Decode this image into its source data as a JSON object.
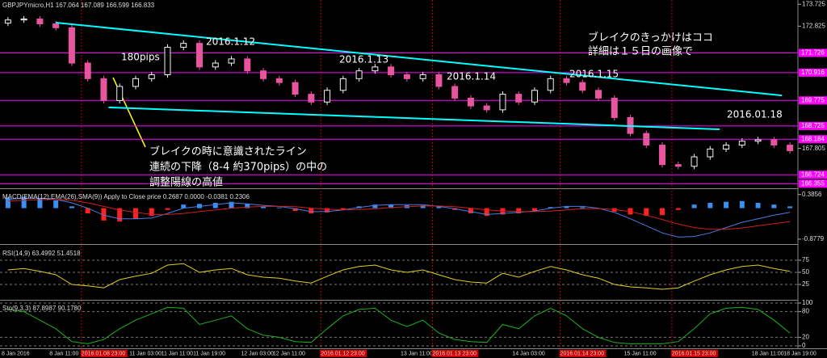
{
  "chart_data": [
    {
      "type": "candlestick",
      "title": "GBPJPYmicro,H1  167.064 167.089 166.599 166.833",
      "categories": [
        "8 Jan 2016",
        null,
        null,
        "8 Jan 11:00",
        null,
        "2016.01.08 23:00",
        null,
        null,
        "11 Jan 03:00",
        null,
        "11 Jan 11:00",
        null,
        "11 Jan 19:00",
        null,
        null,
        "12 Jan 03:00",
        null,
        "12 Jan 11:00",
        null,
        null,
        "2016.01.12 23:00",
        null,
        null,
        null,
        null,
        "13 Jan 11:00",
        null,
        "2016.01.13 23:00",
        null,
        null,
        null,
        null,
        "14 Jan 03:00",
        null,
        null,
        "2016.01.14 23:00",
        null,
        null,
        null,
        "15 Jan 11:00",
        null,
        null,
        "2016.01.15 23:00",
        null,
        null,
        null,
        null,
        "18 Jan 11:00",
        null,
        "18 Jan 19:00"
      ],
      "open": [
        172.95,
        173.08,
        173.12,
        172.92,
        172.76,
        171.31,
        170.67,
        169.77,
        170.35,
        170.67,
        170.83,
        171.96,
        172.12,
        171.15,
        171.31,
        171.48,
        170.99,
        170.67,
        170.51,
        170.03,
        169.71,
        170.19,
        170.67,
        170.99,
        171.15,
        170.83,
        170.67,
        170.83,
        170.35,
        169.87,
        169.55,
        169.39,
        170.03,
        169.71,
        170.19,
        170.67,
        170.51,
        170.19,
        169.87,
        169.07,
        168.42,
        167.94,
        167.14,
        167.07,
        167.46,
        167.78,
        167.94,
        168.1,
        168.16,
        167.94
      ],
      "high": [
        173.2,
        173.24,
        173.24,
        173.04,
        172.88,
        171.43,
        170.79,
        170.47,
        170.79,
        170.95,
        172.08,
        172.24,
        172.24,
        171.43,
        171.6,
        171.6,
        171.11,
        170.79,
        170.63,
        170.15,
        170.31,
        170.79,
        171.11,
        171.27,
        171.27,
        170.95,
        170.95,
        170.95,
        170.47,
        169.99,
        169.67,
        170.15,
        170.15,
        170.31,
        170.79,
        170.79,
        170.63,
        170.31,
        169.99,
        169.19,
        168.54,
        168.06,
        167.26,
        167.58,
        167.9,
        168.06,
        168.22,
        168.28,
        168.28,
        168.06
      ],
      "low": [
        172.83,
        172.96,
        172.8,
        172.64,
        171.19,
        170.55,
        169.65,
        169.65,
        170.23,
        170.55,
        170.71,
        171.84,
        171.03,
        171.03,
        171.19,
        170.87,
        170.55,
        170.39,
        169.91,
        169.59,
        169.59,
        170.07,
        170.55,
        170.87,
        170.71,
        170.55,
        170.55,
        170.23,
        169.75,
        169.43,
        169.27,
        169.27,
        169.59,
        169.59,
        170.07,
        170.39,
        170.07,
        169.75,
        168.95,
        168.3,
        167.82,
        167.02,
        166.95,
        166.95,
        167.34,
        167.66,
        167.82,
        167.98,
        167.82,
        167.59
      ],
      "close": [
        173.08,
        173.12,
        172.92,
        172.76,
        171.31,
        170.67,
        169.77,
        170.35,
        170.67,
        170.83,
        171.96,
        172.12,
        171.15,
        171.31,
        171.48,
        170.99,
        170.67,
        170.51,
        170.03,
        169.71,
        170.19,
        170.67,
        170.99,
        171.15,
        170.83,
        170.67,
        170.83,
        170.35,
        169.87,
        169.55,
        169.39,
        170.03,
        169.71,
        170.19,
        170.67,
        170.51,
        170.19,
        169.87,
        169.07,
        168.42,
        167.94,
        167.14,
        167.07,
        167.46,
        167.78,
        167.94,
        168.1,
        168.16,
        167.94,
        167.71
      ],
      "bull_color": "#f4f4f4",
      "bear_color": "#e8559f",
      "ylim": [
        166.2,
        173.9
      ],
      "yticks": [
        173.725,
        172.825,
        167.805
      ],
      "levels": [
        171.726,
        170.916,
        169.775,
        168.725,
        168.184,
        166.724,
        166.355
      ],
      "level_color": "#ff00ff",
      "trendlines": [
        {
          "from": [
            3,
            172.97
          ],
          "to": [
            48.5,
            169.98
          ],
          "color": "#00ffff"
        },
        {
          "from": [
            6.3,
            169.49
          ],
          "to": [
            44.6,
            168.59
          ],
          "color": "#00ffff"
        }
      ],
      "annotations": [
        "2016.1.12",
        "180pips",
        "2016.1.13",
        "2016.1.14",
        "2016.1.15",
        "2016.01.18",
        "ブレイクのきっかけはココ",
        "詳細は１５日の画像で",
        "ブレイクの時に意識されたライン",
        "連続の下降（8-4 約370pips）の中の",
        "調整陽線の高値"
      ]
    },
    {
      "type": "macd",
      "title": "MACD(EMA(12),EMA(26),SMA(9)) Apply to Close price 0.2687 0.0000 -0.0381 0.2306",
      "values": [
        0.3,
        0.32,
        0.28,
        0.22,
        0.05,
        -0.15,
        -0.35,
        -0.38,
        -0.3,
        -0.22,
        -0.05,
        0.1,
        0.12,
        0.15,
        0.18,
        0.12,
        0.05,
        0.02,
        -0.08,
        -0.15,
        -0.12,
        -0.05,
        0.05,
        0.1,
        0.1,
        0.08,
        0.08,
        0.05,
        -0.05,
        -0.15,
        -0.22,
        -0.18,
        -0.15,
        -0.1,
        0.03,
        0.05,
        0.03,
        -0.02,
        -0.1,
        -0.18,
        -0.22,
        -0.2,
        -0.05,
        0.1,
        0.15,
        0.18,
        0.2,
        0.15,
        0.1,
        0.05
      ],
      "up_color": "#3b8ff0",
      "down_color": "#ff2020",
      "series": [
        {
          "color": "#4a7de0",
          "values": [
            0.25,
            0.28,
            0.28,
            0.25,
            0.15,
            0.0,
            -0.2,
            -0.3,
            -0.3,
            -0.28,
            -0.15,
            0.0,
            0.05,
            0.1,
            0.15,
            0.12,
            0.08,
            0.05,
            -0.02,
            -0.1,
            -0.1,
            -0.05,
            0.02,
            0.08,
            0.1,
            0.1,
            0.1,
            0.05,
            -0.02,
            -0.1,
            -0.18,
            -0.15,
            -0.12,
            -0.08,
            0.0,
            0.05,
            0.05,
            0.0,
            -0.12,
            -0.3,
            -0.5,
            -0.7,
            -0.82,
            -0.8,
            -0.7,
            -0.55,
            -0.4,
            -0.3,
            -0.2,
            -0.12
          ]
        },
        {
          "color": "#d02020",
          "values": [
            0.2,
            0.22,
            0.24,
            0.25,
            0.22,
            0.15,
            0.05,
            -0.05,
            -0.12,
            -0.18,
            -0.18,
            -0.15,
            -0.1,
            -0.05,
            0.0,
            0.03,
            0.05,
            0.05,
            0.04,
            0.0,
            -0.03,
            -0.05,
            -0.04,
            -0.02,
            0.02,
            0.04,
            0.06,
            0.06,
            0.04,
            0.0,
            -0.05,
            -0.08,
            -0.1,
            -0.1,
            -0.08,
            -0.05,
            -0.02,
            -0.01,
            -0.04,
            -0.1,
            -0.2,
            -0.32,
            -0.45,
            -0.55,
            -0.6,
            -0.6,
            -0.56,
            -0.5,
            -0.44,
            -0.38
          ]
        }
      ],
      "ylim": [
        -0.97,
        0.47
      ],
      "yticks": [
        0.3856,
        -0.8779
      ]
    },
    {
      "type": "line",
      "title": "RSI(14,9) 63.4992 51.4518",
      "values": [
        55,
        58,
        52,
        45,
        25,
        22,
        18,
        35,
        42,
        48,
        65,
        68,
        50,
        55,
        58,
        45,
        40,
        38,
        32,
        28,
        42,
        55,
        62,
        65,
        55,
        50,
        55,
        45,
        35,
        30,
        28,
        48,
        40,
        52,
        62,
        55,
        45,
        38,
        25,
        20,
        18,
        15,
        18,
        32,
        45,
        55,
        62,
        65,
        58,
        52
      ],
      "color": "#e0d020",
      "ylim": [
        0,
        100
      ],
      "yticks": [
        25,
        50,
        75
      ]
    },
    {
      "type": "line",
      "title": "Sto(9,3,3) 87.8987 90.1780",
      "values": [
        85,
        80,
        60,
        40,
        10,
        5,
        15,
        40,
        60,
        75,
        90,
        88,
        50,
        60,
        70,
        40,
        25,
        20,
        10,
        8,
        40,
        70,
        85,
        88,
        60,
        45,
        60,
        30,
        15,
        10,
        8,
        50,
        40,
        70,
        88,
        70,
        40,
        20,
        8,
        5,
        5,
        5,
        10,
        40,
        75,
        88,
        90,
        85,
        60,
        30
      ],
      "color": "#20b020",
      "ylim": [
        0,
        100
      ],
      "yticks": [
        0,
        20,
        80,
        100
      ]
    }
  ]
}
